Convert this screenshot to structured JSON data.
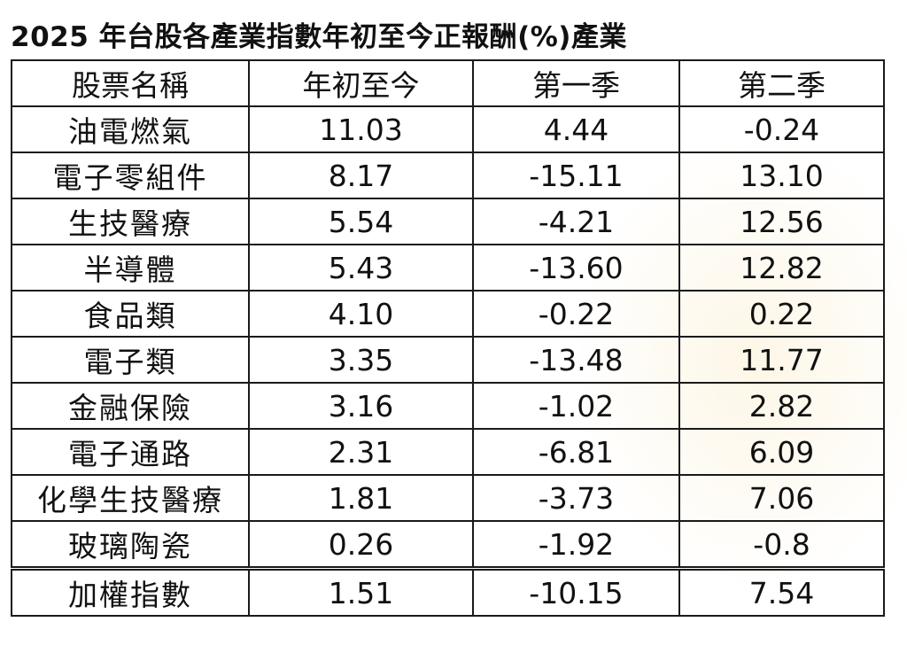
{
  "title": "2025 年台股各產業指數年初至今正報酬(%)產業",
  "table": {
    "headers": [
      "股票名稱",
      "年初至今",
      "第一季",
      "第二季"
    ],
    "rows": [
      {
        "name": "油電燃氣",
        "ytd": "11.03",
        "q1": "4.44",
        "q2": "-0.24"
      },
      {
        "name": "電子零組件",
        "ytd": "8.17",
        "q1": "-15.11",
        "q2": "13.10"
      },
      {
        "name": "生技醫療",
        "ytd": "5.54",
        "q1": "-4.21",
        "q2": "12.56"
      },
      {
        "name": "半導體",
        "ytd": "5.43",
        "q1": "-13.60",
        "q2": "12.82"
      },
      {
        "name": "食品類",
        "ytd": "4.10",
        "q1": "-0.22",
        "q2": "0.22"
      },
      {
        "name": "電子類",
        "ytd": "3.35",
        "q1": "-13.48",
        "q2": "11.77"
      },
      {
        "name": "金融保險",
        "ytd": "3.16",
        "q1": "-1.02",
        "q2": "2.82"
      },
      {
        "name": "電子通路",
        "ytd": "2.31",
        "q1": "-6.81",
        "q2": "6.09"
      },
      {
        "name": "化學生技醫療",
        "ytd": "1.81",
        "q1": "-3.73",
        "q2": "7.06"
      },
      {
        "name": "玻璃陶瓷",
        "ytd": "0.26",
        "q1": "-1.92",
        "q2": "-0.8"
      }
    ],
    "index_row": {
      "name": "加權指數",
      "ytd": "1.51",
      "q1": "-10.15",
      "q2": "7.54"
    }
  }
}
